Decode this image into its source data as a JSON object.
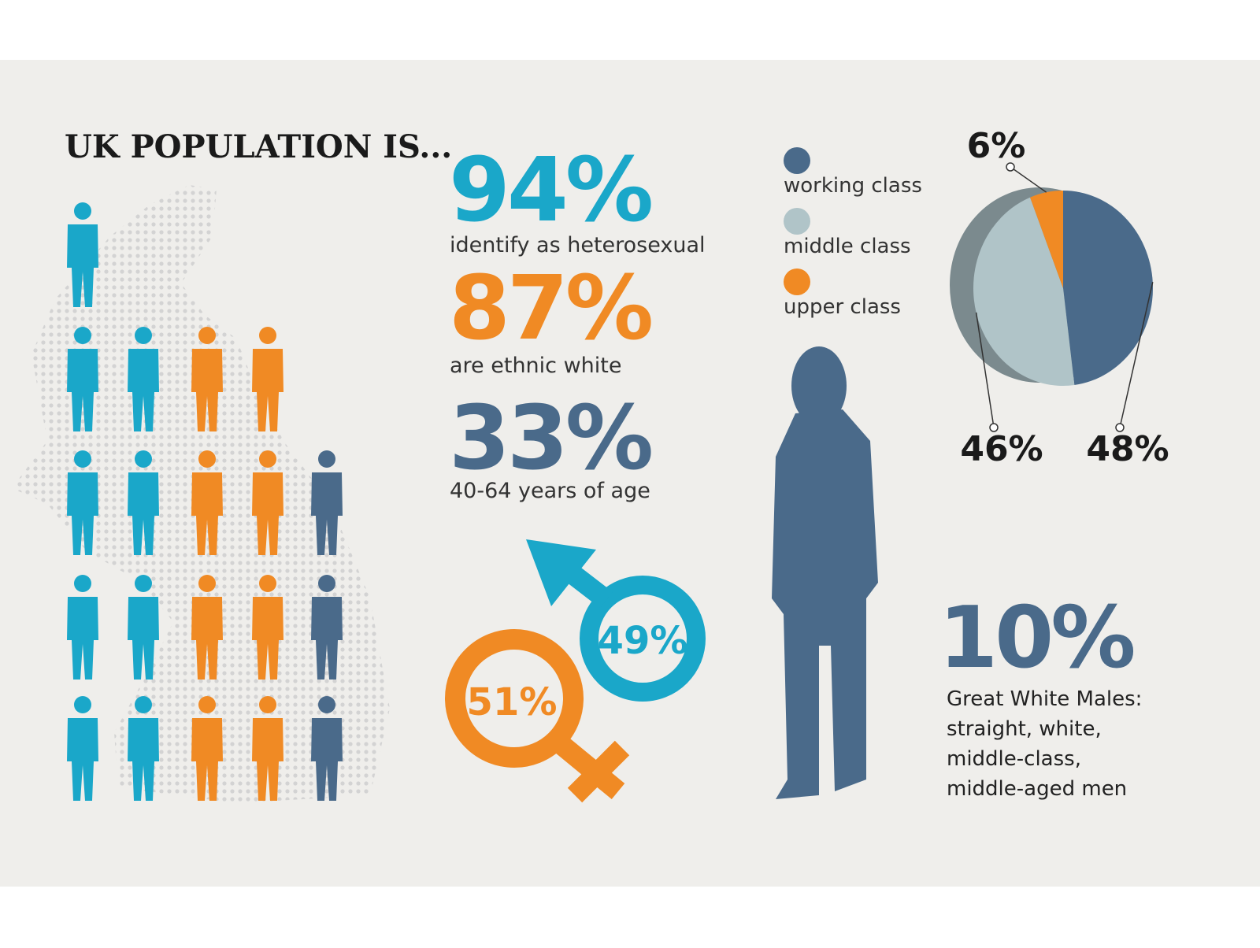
{
  "title": "UK POPULATION IS...",
  "stats": [
    {
      "value": "94%",
      "label": "identify as heterosexual"
    },
    {
      "value": "87%",
      "label": "are ethnic white"
    },
    {
      "value": "33%",
      "label": "40-64 years of age"
    }
  ],
  "gender": {
    "male": "49%",
    "female": "51%"
  },
  "chart_data": {
    "type": "pie",
    "categories": [
      "working class",
      "middle class",
      "upper class"
    ],
    "values": [
      48,
      46,
      6
    ],
    "value_labels": [
      "48%",
      "46%",
      "6%"
    ],
    "colors": [
      "#4a6a8a",
      "#b0c4c8",
      "#f08a24"
    ]
  },
  "highlight": {
    "value": "10%",
    "caption": [
      "Great White Males:",
      "straight, white,",
      "middle-class,",
      "middle-aged men"
    ]
  }
}
